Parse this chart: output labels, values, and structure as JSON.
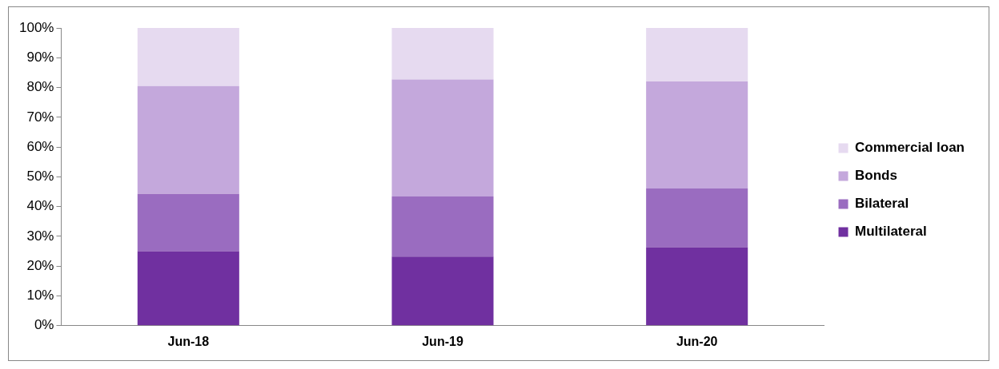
{
  "chart_data": {
    "type": "bar",
    "stacked": true,
    "categories": [
      "Jun-18",
      "Jun-19",
      "Jun-20"
    ],
    "series": [
      {
        "name": "Multilateral",
        "color": "#7030a0",
        "values": [
          25.0,
          23.2,
          26.4
        ]
      },
      {
        "name": "Bilateral",
        "color": "#9a6cc0",
        "values": [
          19.3,
          20.2,
          19.7
        ]
      },
      {
        "name": "Bonds",
        "color": "#c4a8dc",
        "values": [
          36.2,
          39.3,
          35.9
        ]
      },
      {
        "name": "Commercial loan",
        "color": "#e6daf0",
        "values": [
          19.5,
          17.3,
          18.0
        ]
      }
    ],
    "ylim": [
      0,
      100
    ],
    "yticks": [
      {
        "value": 0,
        "label": "0%"
      },
      {
        "value": 10,
        "label": "10%"
      },
      {
        "value": 20,
        "label": "20%"
      },
      {
        "value": 30,
        "label": "30%"
      },
      {
        "value": 40,
        "label": "40%"
      },
      {
        "value": 50,
        "label": "50%"
      },
      {
        "value": 60,
        "label": "60%"
      },
      {
        "value": 70,
        "label": "70%"
      },
      {
        "value": 80,
        "label": "80%"
      },
      {
        "value": 90,
        "label": "90%"
      },
      {
        "value": 100,
        "label": "100%"
      }
    ],
    "grid": false,
    "legend": "right"
  }
}
